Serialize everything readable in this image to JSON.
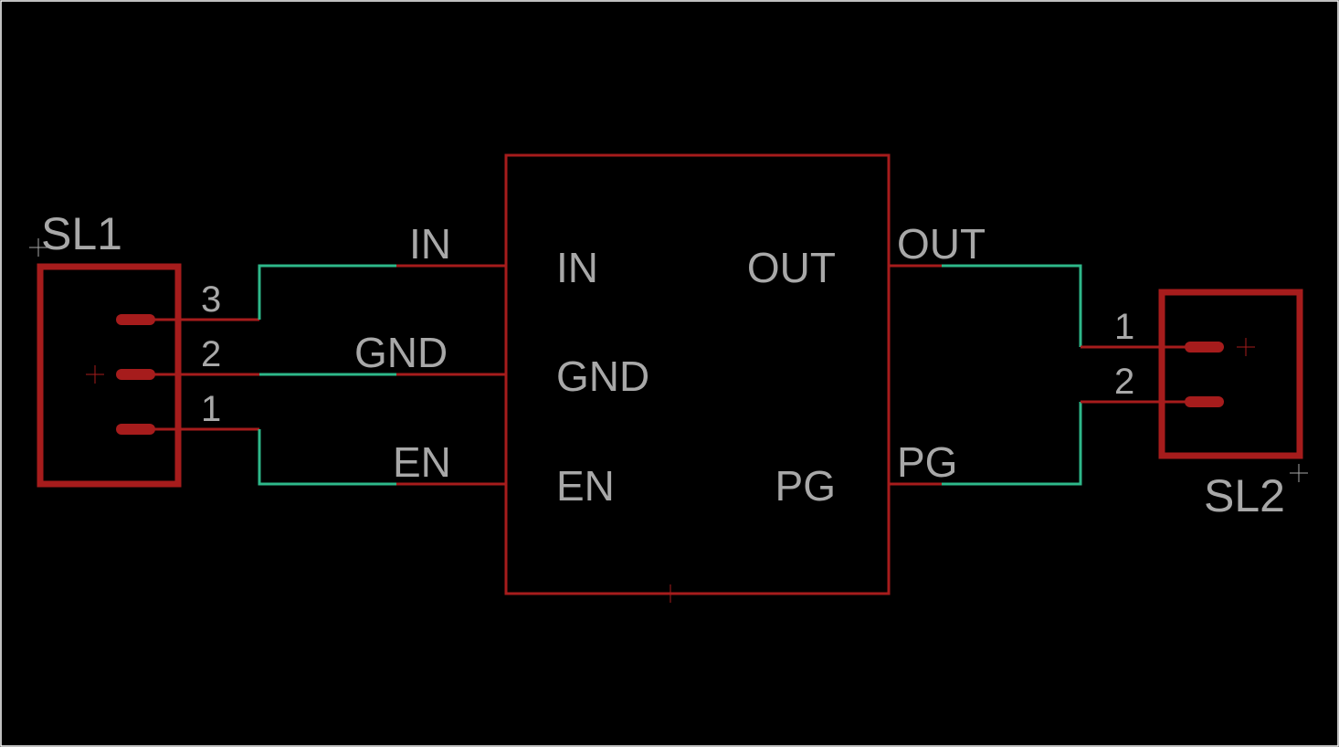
{
  "colors": {
    "background": "#000000",
    "symbol": "#a61c1c",
    "wire": "#2eb88a",
    "text": "#a8a8a8",
    "frame": "#ffffff"
  },
  "connector_sl1": {
    "name": "SL1",
    "pins": [
      "3",
      "2",
      "1"
    ]
  },
  "connector_sl2": {
    "name": "SL2",
    "pins": [
      "1",
      "2"
    ]
  },
  "ic": {
    "pins_left": [
      "IN",
      "GND",
      "EN"
    ],
    "pins_right": [
      "OUT",
      "PG"
    ]
  },
  "nets": {
    "in": "IN",
    "gnd": "GND",
    "en": "EN",
    "out": "OUT",
    "pg": "PG"
  }
}
